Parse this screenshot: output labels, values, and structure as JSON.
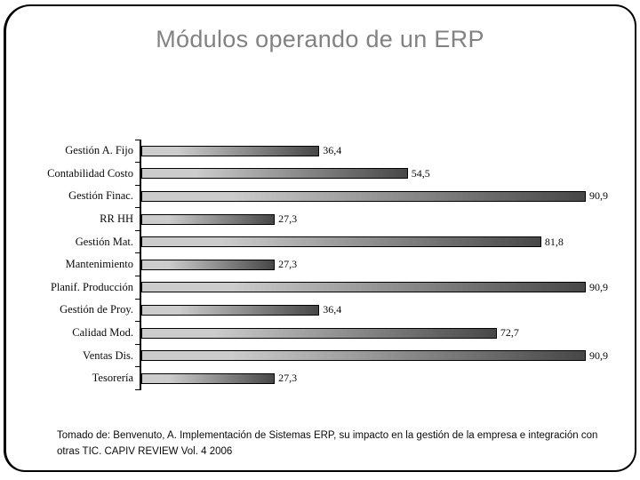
{
  "slide": {
    "title": "Módulos operando de un ERP",
    "citation": "Tomado de: Benvenuto, A.  Implementación de Sistemas ERP, su impacto en la gestión de la empresa e integración con\notras TIC.  CAPIV REVIEW Vol. 4 2006"
  },
  "colors": {
    "background": "#ffffff",
    "frame": "#000000",
    "title_text": "#828282",
    "body_text": "#0a0a0a",
    "axis": "#000000",
    "bar_border": "#000000",
    "bar_light": "#cccccc",
    "bar_dark": "#474747"
  },
  "chart_data": {
    "type": "bar",
    "orientation": "horizontal",
    "title": "",
    "xlabel": "",
    "ylabel": "",
    "xlim": [
      0,
      100
    ],
    "grid": false,
    "legend": false,
    "data_labels": true,
    "categories": [
      "Gestión A. Fijo",
      "Contabilidad Costo",
      "Gestión Finac.",
      "RR HH",
      "Gestión Mat.",
      "Mantenimiento",
      "Planif. Producción",
      "Gestión de Proy.",
      "Calidad Mod.",
      "Ventas Dis.",
      "Tesorería"
    ],
    "values": [
      36.4,
      54.5,
      90.9,
      27.3,
      81.8,
      27.3,
      90.9,
      36.4,
      72.7,
      90.9,
      27.3
    ],
    "value_labels": [
      "36,4",
      "54,5",
      "90,9",
      "27,3",
      "81,8",
      "27,3",
      "90,9",
      "36,4",
      "72,7",
      "90,9",
      "27,3"
    ]
  }
}
